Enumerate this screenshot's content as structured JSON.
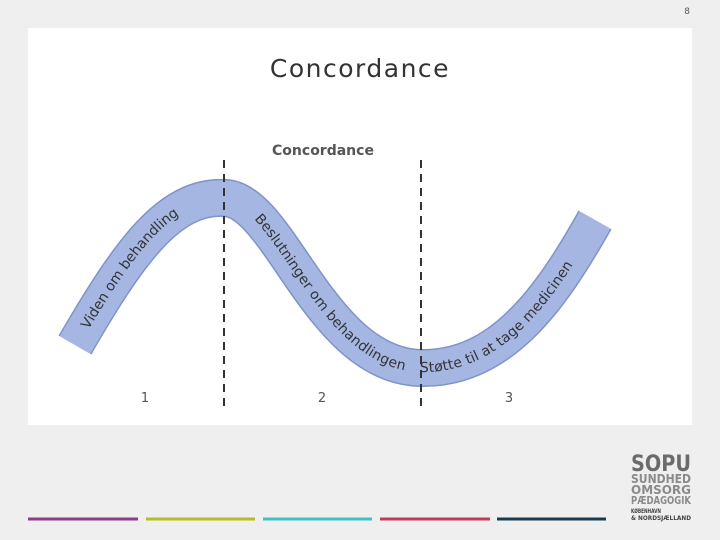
{
  "slide_number": "8",
  "title": "Concordance",
  "diagram": {
    "title": "Concordance",
    "phases": [
      {
        "label": "Viden om behandling",
        "number": "1"
      },
      {
        "label": "Beslutninger om behandlingen",
        "number": "2"
      },
      {
        "label": "Støtte til at tage medicinen",
        "number": "3"
      }
    ]
  },
  "logo": {
    "lines": [
      "SOPU",
      "SUNDHED",
      "OMSORG",
      "PÆDAGOGIK"
    ],
    "sublines": [
      "KØBENHAVN",
      "& NORDSJÆLLAND"
    ]
  }
}
